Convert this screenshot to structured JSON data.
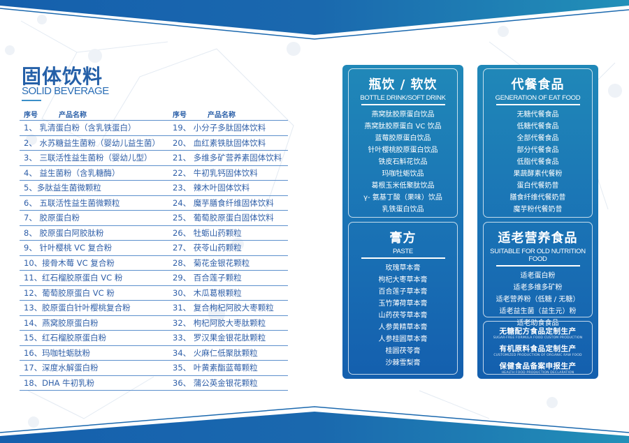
{
  "colors": {
    "primary": "#1a6db2",
    "accent": "#2088b8",
    "text": "#2f5fa8"
  },
  "page": {
    "title": "固体饮料",
    "subtitle": "SOLID BEVERAGE"
  },
  "table": {
    "headers": {
      "no": "序号",
      "name": "产品名称"
    },
    "left": [
      "1、 乳清蛋白粉（含乳铁蛋白）",
      "2、 水苏糖益生菌粉（婴幼儿益生菌）",
      "3、 三联活性益生菌粉（婴幼儿型）",
      "4、 益生菌粉（含乳糖酶）",
      "5、多肽益生菌微颗粒",
      "6、 五联活性益生菌微颗粒",
      "7、 胶原蛋白粉",
      "8、 胶原蛋白阿胶肽粉",
      "9、 针叶樱桃 VC 复合粉",
      "10、接骨木莓 VC 复合粉",
      "11、红石榴胶原蛋白 VC 粉",
      "12、葡萄胶原蛋白 VC 粉",
      "13、胶原蛋白针叶樱桃复合粉",
      "14、燕窝胶原蛋白粉",
      "15、红石榴胶原蛋白粉",
      "16、玛咖牡蛎肽粉",
      "17、深度水解蛋白粉",
      "18、DHA 牛初乳粉"
    ],
    "right": [
      "19、 小分子多肽固体饮料",
      "20、 血红素铁肽固体饮料",
      "21、 多维多矿营养素固体饮料",
      "22、 牛初乳钙固体饮料",
      "23、 辣木叶固体饮料",
      "24、 魔芋膳食纤维固体饮料",
      "25、 葡萄胶原蛋白固体饮料",
      "26、 牡蛎山药颗粒",
      "27、 茯苓山药颗粒",
      "28、 菊花金银花颗粒",
      "29、 百合莲子颗粒",
      "30、 木瓜葛根颗粒",
      "31、 复合枸杞阿胶大枣颗粒",
      "32、 枸杞阿胶大枣肽颗粒",
      "33、 罗汉果金银花肽颗粒",
      "34、 火麻仁低聚肽颗粒",
      "35、 叶黄素酯蓝莓颗粒",
      "36、 蒲公英金银花颗粒"
    ]
  },
  "panels": {
    "bottle": {
      "title": "瓶饮 / 软饮",
      "en": "BOTTLE DRINK/SOFT DRINK",
      "items": [
        "燕窝肽胶原蛋白饮品",
        "燕窝肽胶原蛋白 VC 饮品",
        "蓝莓胶原蛋白饮品",
        "针叶樱桃胶原蛋白饮品",
        "铁皮石斛花饮品",
        "玛咖牡蛎饮品",
        "葛根玉米低聚肽饮品",
        "γ- 氨基丁酸（果味）饮品",
        "乳铁蛋白饮品"
      ]
    },
    "paste": {
      "title": "膏方",
      "en": "PASTE",
      "items": [
        "玫瑰草本膏",
        "枸杞大枣草本膏",
        "百合莲子草本膏",
        "玉竹薄荷草本膏",
        "山药茯苓草本膏",
        "人参黄精草本膏",
        "人参桂圆草本膏",
        "桂圆茯苓膏",
        "沙棘雪梨膏"
      ]
    },
    "meal": {
      "title": "代餐食品",
      "en": "GENERATION OF EAT FOOD",
      "items": [
        "无糖代餐食品",
        "低糖代餐食品",
        "全部代餐食品",
        "部分代餐食品",
        "低脂代餐食品",
        "果蔬酵素代餐粉",
        "蛋白代餐奶昔",
        "膳食纤维代餐奶昔",
        "魔芋粉代餐奶昔"
      ]
    },
    "elderly": {
      "title": "适老营养食品",
      "en": "SUITABLE FOR OLD NUTRITION FOOD",
      "items": [
        "适老蛋白粉",
        "适老多维多矿粉",
        "适老营养粉（低糖 / 无糖）",
        "适老益生菌（益生元）粉",
        "适老助食食品"
      ]
    },
    "services": [
      {
        "zh": "无糖配方食品定制生产",
        "en": "SUGAR-FREE FORMULA FOOD CUSTOM PRODUCTION"
      },
      {
        "zh": "有机原料食品定制生产",
        "en": "CUSTOMIZED PRODUCTION OF ORGANIC RAW FOOD"
      },
      {
        "zh": "保健食品备案申报生产",
        "en": "HEALTH FOOD PRODUCTION DECLARATION"
      }
    ]
  }
}
